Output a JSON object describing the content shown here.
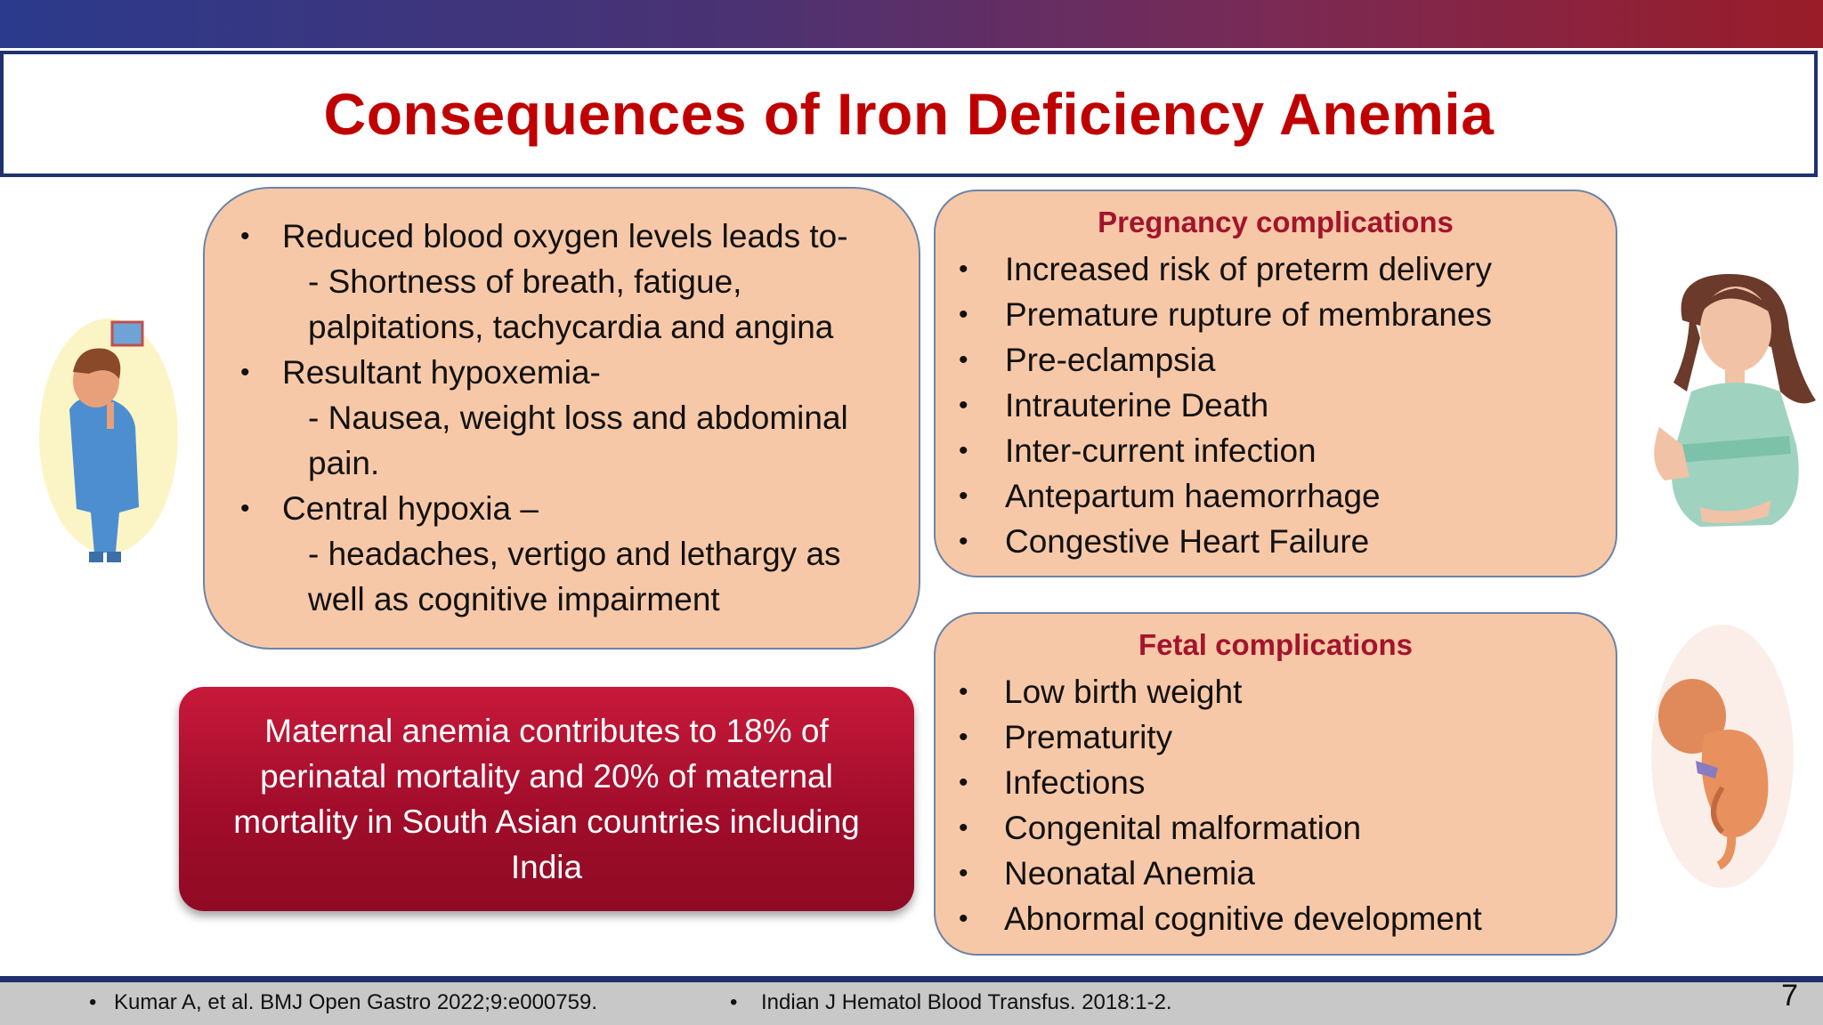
{
  "title": "Consequences of Iron Deficiency Anemia",
  "left_card": {
    "lines": [
      {
        "bullet": true,
        "text": "Reduced blood oxygen levels leads to-"
      },
      {
        "bullet": false,
        "text": "- Shortness of breath, fatigue,"
      },
      {
        "bullet": false,
        "text": "palpitations, tachycardia and angina"
      },
      {
        "bullet": true,
        "text": "Resultant hypoxemia-"
      },
      {
        "bullet": false,
        "text": "-  Nausea, weight loss and abdominal"
      },
      {
        "bullet": false,
        "text": "pain."
      },
      {
        "bullet": true,
        "text": " Central hypoxia –"
      },
      {
        "bullet": false,
        "text": "- headaches, vertigo and lethargy as"
      },
      {
        "bullet": false,
        "text": "well as cognitive impairment"
      }
    ]
  },
  "pregnancy": {
    "heading": "Pregnancy complications",
    "items": [
      "Increased risk of preterm delivery",
      "Premature rupture of membranes",
      "Pre-eclampsia",
      "Intrauterine Death",
      "Inter-current infection",
      "Antepartum haemorrhage",
      "Congestive Heart Failure"
    ]
  },
  "fetal": {
    "heading": "Fetal complications",
    "items": [
      "Low birth weight",
      "Prematurity",
      "Infections",
      "Congenital malformation",
      "Neonatal Anemia",
      "Abnormal cognitive development"
    ]
  },
  "callout": {
    "text": "Maternal anemia contributes to 18% of perinatal mortality and 20% of maternal mortality in South Asian countries including India"
  },
  "footer": {
    "ref1": "Kumar A, et al. BMJ Open Gastro 2022;9:e000759.",
    "ref2": "Indian J Hematol Blood Transfus. 2018:1-2.",
    "page": "7"
  },
  "bullet_char": "•",
  "colors": {
    "title": "#c00000",
    "card_fill": "#f7c8a7",
    "heading": "#a3142c",
    "callout": "#a10d2b"
  }
}
